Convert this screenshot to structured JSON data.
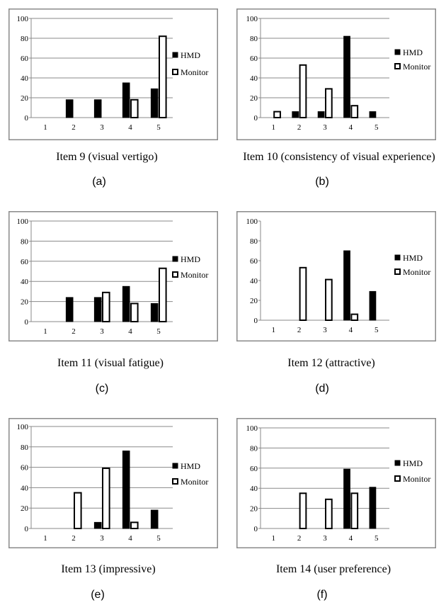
{
  "legend": {
    "hmd": "HMD",
    "monitor": "Monitor"
  },
  "colors": {
    "hmd": "#000000",
    "monitor": "#ffffff",
    "frame": "#8a8a8a"
  },
  "chart_data": [
    {
      "type": "bar",
      "title": "Item 9 (visual vertigo)",
      "label": "(a)",
      "categories": [
        "1",
        "2",
        "3",
        "4",
        "5"
      ],
      "ylim": [
        0,
        100
      ],
      "yticks": [
        "0",
        "20",
        "40",
        "60",
        "80",
        "100"
      ],
      "series": [
        {
          "name": "HMD",
          "values": [
            0,
            18,
            18,
            35,
            29
          ]
        },
        {
          "name": "Monitor",
          "values": [
            0,
            0,
            0,
            18,
            82
          ]
        }
      ],
      "grid": true,
      "legend_position": "right"
    },
    {
      "type": "bar",
      "title": "Item 10 (consistency of visual experience)",
      "label": "(b)",
      "categories": [
        "1",
        "2",
        "3",
        "4",
        "5"
      ],
      "ylim": [
        0,
        100
      ],
      "yticks": [
        "0",
        "20",
        "40",
        "60",
        "80",
        "100"
      ],
      "series": [
        {
          "name": "HMD",
          "values": [
            0,
            6,
            6,
            82,
            6
          ]
        },
        {
          "name": "Monitor",
          "values": [
            6,
            53,
            29,
            12,
            0
          ]
        }
      ],
      "grid": true,
      "legend_position": "right"
    },
    {
      "type": "bar",
      "title": "Item 11 (visual fatigue)",
      "label": "(c)",
      "categories": [
        "1",
        "2",
        "3",
        "4",
        "5"
      ],
      "ylim": [
        0,
        100
      ],
      "yticks": [
        "0",
        "20",
        "40",
        "60",
        "80",
        "100"
      ],
      "series": [
        {
          "name": "HMD",
          "values": [
            0,
            24,
            24,
            35,
            18
          ]
        },
        {
          "name": "Monitor",
          "values": [
            0,
            0,
            29,
            18,
            53
          ]
        }
      ],
      "grid": true,
      "legend_position": "right"
    },
    {
      "type": "bar",
      "title": "Item 12 (attractive)",
      "label": "(d)",
      "categories": [
        "1",
        "2",
        "3",
        "4",
        "5"
      ],
      "ylim": [
        0,
        100
      ],
      "yticks": [
        "0",
        "20",
        "40",
        "60",
        "80",
        "100"
      ],
      "series": [
        {
          "name": "HMD",
          "values": [
            0,
            0,
            0,
            70,
            29
          ]
        },
        {
          "name": "Monitor",
          "values": [
            0,
            53,
            41,
            6,
            0
          ]
        }
      ],
      "grid": false,
      "legend_position": "right"
    },
    {
      "type": "bar",
      "title": "Item 13 (impressive)",
      "label": "(e)",
      "categories": [
        "1",
        "2",
        "3",
        "4",
        "5"
      ],
      "ylim": [
        0,
        100
      ],
      "yticks": [
        "0",
        "20",
        "40",
        "60",
        "80",
        "100"
      ],
      "series": [
        {
          "name": "HMD",
          "values": [
            0,
            0,
            6,
            76,
            18
          ]
        },
        {
          "name": "Monitor",
          "values": [
            0,
            35,
            59,
            6,
            0
          ]
        }
      ],
      "grid": true,
      "legend_position": "right"
    },
    {
      "type": "bar",
      "title": "Item 14 (user preference)",
      "label": "(f)",
      "categories": [
        "1",
        "2",
        "3",
        "4",
        "5"
      ],
      "ylim": [
        0,
        100
      ],
      "yticks": [
        "0",
        "20",
        "40",
        "60",
        "80",
        "100"
      ],
      "series": [
        {
          "name": "HMD",
          "values": [
            0,
            0,
            0,
            59,
            41
          ]
        },
        {
          "name": "Monitor",
          "values": [
            0,
            35,
            29,
            35,
            0
          ]
        }
      ],
      "grid": true,
      "legend_position": "right"
    }
  ]
}
